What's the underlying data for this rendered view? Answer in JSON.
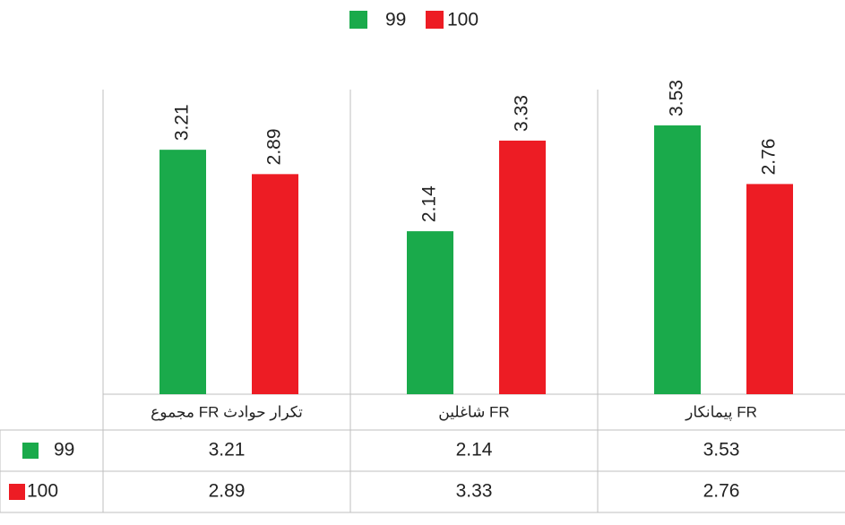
{
  "chart_data": {
    "type": "bar",
    "categories": [
      "مجموع FR تکرار حوادث",
      "شاغلین FR",
      "پیمانکار FR"
    ],
    "series": [
      {
        "name": "99",
        "color": "#1aaa4b",
        "values": [
          3.21,
          2.14,
          3.53
        ]
      },
      {
        "name": "100",
        "color": "#ed1c24",
        "values": [
          2.89,
          3.33,
          2.76
        ]
      }
    ],
    "ylim": [
      0,
      4
    ]
  }
}
